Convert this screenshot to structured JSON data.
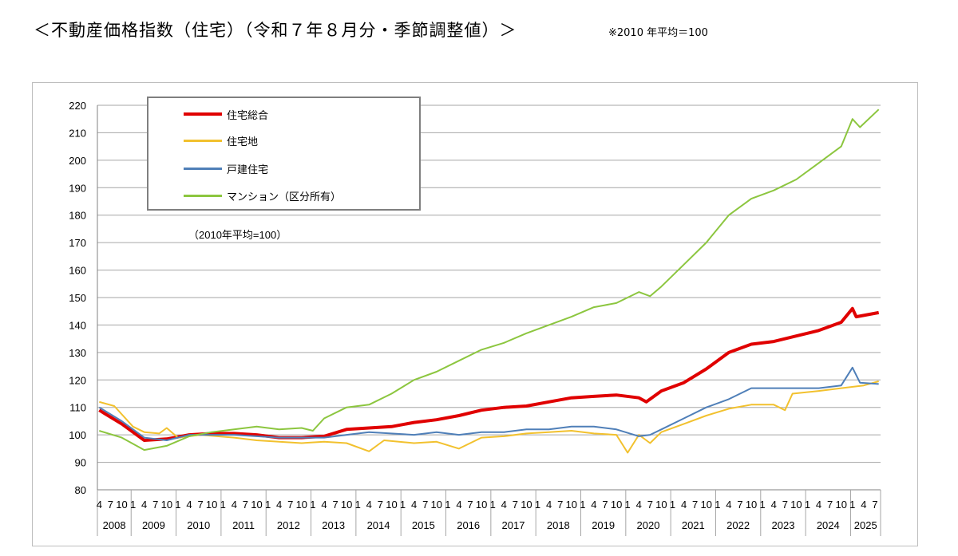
{
  "title": "＜不動産価格指数（住宅）（令和７年８月分・季節調整値）＞",
  "note": "※2010 年平均＝100",
  "chart_data": {
    "type": "line",
    "subtitle": "（2010年平均=100）",
    "ylim": [
      80,
      220
    ],
    "yticks": [
      80,
      90,
      100,
      110,
      120,
      130,
      140,
      150,
      160,
      170,
      180,
      190,
      200,
      210,
      220
    ],
    "grid": true,
    "legend_position": "top-left",
    "x_start": "2008-04",
    "x_end": "2025-08",
    "years": [
      "2008",
      "2009",
      "2010",
      "2011",
      "2012",
      "2013",
      "2014",
      "2015",
      "2016",
      "2017",
      "2018",
      "2019",
      "2020",
      "2021",
      "2022",
      "2023",
      "2024",
      "2025"
    ],
    "month_ticks": [
      "1",
      "4",
      "7",
      "10"
    ],
    "series": [
      {
        "name": "住宅総合",
        "color": "#e00000",
        "width": 4,
        "points": [
          [
            "2008-04",
            109
          ],
          [
            "2008-10",
            104
          ],
          [
            "2009-04",
            98
          ],
          [
            "2009-10",
            98.5
          ],
          [
            "2010-04",
            100
          ],
          [
            "2010-10",
            100.5
          ],
          [
            "2011-04",
            100.5
          ],
          [
            "2011-10",
            100
          ],
          [
            "2012-04",
            99
          ],
          [
            "2012-10",
            99
          ],
          [
            "2013-04",
            99.5
          ],
          [
            "2013-10",
            102
          ],
          [
            "2014-04",
            102.5
          ],
          [
            "2014-10",
            103
          ],
          [
            "2015-04",
            104.5
          ],
          [
            "2015-10",
            105.5
          ],
          [
            "2016-04",
            107
          ],
          [
            "2016-10",
            109
          ],
          [
            "2017-04",
            110
          ],
          [
            "2017-10",
            110.5
          ],
          [
            "2018-04",
            112
          ],
          [
            "2018-10",
            113.5
          ],
          [
            "2019-04",
            114
          ],
          [
            "2019-10",
            114.5
          ],
          [
            "2020-04",
            113.5
          ],
          [
            "2020-06",
            112
          ],
          [
            "2020-10",
            116
          ],
          [
            "2021-04",
            119
          ],
          [
            "2021-10",
            124
          ],
          [
            "2022-04",
            130
          ],
          [
            "2022-10",
            133
          ],
          [
            "2023-04",
            134
          ],
          [
            "2023-10",
            136
          ],
          [
            "2024-04",
            138
          ],
          [
            "2024-10",
            141
          ],
          [
            "2025-01",
            146
          ],
          [
            "2025-02",
            143
          ],
          [
            "2025-08",
            144.5
          ]
        ]
      },
      {
        "name": "住宅地",
        "color": "#f2c12e",
        "width": 2,
        "points": [
          [
            "2008-04",
            112
          ],
          [
            "2008-08",
            110.5
          ],
          [
            "2009-01",
            103
          ],
          [
            "2009-04",
            101
          ],
          [
            "2009-08",
            100.5
          ],
          [
            "2009-10",
            102.5
          ],
          [
            "2010-01",
            99
          ],
          [
            "2010-07",
            100
          ],
          [
            "2011-04",
            99
          ],
          [
            "2011-10",
            98
          ],
          [
            "2012-04",
            97.5
          ],
          [
            "2012-10",
            97
          ],
          [
            "2013-04",
            97.5
          ],
          [
            "2013-10",
            97
          ],
          [
            "2014-04",
            94
          ],
          [
            "2014-08",
            98
          ],
          [
            "2015-04",
            97
          ],
          [
            "2015-10",
            97.5
          ],
          [
            "2016-04",
            95
          ],
          [
            "2016-10",
            99
          ],
          [
            "2017-04",
            99.5
          ],
          [
            "2017-10",
            100.5
          ],
          [
            "2018-04",
            101
          ],
          [
            "2018-10",
            101.5
          ],
          [
            "2019-04",
            100.5
          ],
          [
            "2019-10",
            100
          ],
          [
            "2020-01",
            93.5
          ],
          [
            "2020-04",
            100
          ],
          [
            "2020-07",
            97
          ],
          [
            "2020-10",
            101
          ],
          [
            "2021-04",
            104
          ],
          [
            "2021-10",
            107
          ],
          [
            "2022-04",
            109.5
          ],
          [
            "2022-10",
            111
          ],
          [
            "2023-04",
            111
          ],
          [
            "2023-07",
            109
          ],
          [
            "2023-09",
            115
          ],
          [
            "2024-04",
            116
          ],
          [
            "2024-10",
            117
          ],
          [
            "2025-04",
            118
          ],
          [
            "2025-08",
            119.5
          ]
        ]
      },
      {
        "name": "戸建住宅",
        "color": "#4f7fb8",
        "width": 2,
        "points": [
          [
            "2008-04",
            110
          ],
          [
            "2008-10",
            105
          ],
          [
            "2009-04",
            99
          ],
          [
            "2009-10",
            98
          ],
          [
            "2010-04",
            100
          ],
          [
            "2011-04",
            100
          ],
          [
            "2012-04",
            99
          ],
          [
            "2013-04",
            99
          ],
          [
            "2013-10",
            100
          ],
          [
            "2014-04",
            101
          ],
          [
            "2015-04",
            100
          ],
          [
            "2015-10",
            101
          ],
          [
            "2016-04",
            100
          ],
          [
            "2016-10",
            101
          ],
          [
            "2017-04",
            101
          ],
          [
            "2017-10",
            102
          ],
          [
            "2018-04",
            102
          ],
          [
            "2018-10",
            103
          ],
          [
            "2019-04",
            103
          ],
          [
            "2019-10",
            102
          ],
          [
            "2020-04",
            99.5
          ],
          [
            "2020-07",
            100
          ],
          [
            "2020-10",
            102
          ],
          [
            "2021-04",
            106
          ],
          [
            "2021-10",
            110
          ],
          [
            "2022-04",
            113
          ],
          [
            "2022-10",
            117
          ],
          [
            "2023-04",
            117
          ],
          [
            "2023-10",
            117
          ],
          [
            "2024-04",
            117
          ],
          [
            "2024-10",
            118
          ],
          [
            "2025-01",
            124.5
          ],
          [
            "2025-03",
            119
          ],
          [
            "2025-08",
            118.5
          ]
        ]
      },
      {
        "name": "マンション（区分所有）",
        "color": "#8cc63f",
        "width": 2,
        "points": [
          [
            "2008-04",
            101.5
          ],
          [
            "2008-10",
            99
          ],
          [
            "2009-04",
            94.5
          ],
          [
            "2009-10",
            96
          ],
          [
            "2010-04",
            99.5
          ],
          [
            "2010-10",
            101
          ],
          [
            "2011-04",
            102
          ],
          [
            "2011-10",
            103
          ],
          [
            "2012-04",
            102
          ],
          [
            "2012-10",
            102.5
          ],
          [
            "2013-01",
            101.5
          ],
          [
            "2013-04",
            106
          ],
          [
            "2013-10",
            110
          ],
          [
            "2014-04",
            111
          ],
          [
            "2014-10",
            115
          ],
          [
            "2015-04",
            120
          ],
          [
            "2015-10",
            123
          ],
          [
            "2016-04",
            127
          ],
          [
            "2016-10",
            131
          ],
          [
            "2017-04",
            133.5
          ],
          [
            "2017-10",
            137
          ],
          [
            "2018-04",
            140
          ],
          [
            "2018-10",
            143
          ],
          [
            "2019-04",
            146.5
          ],
          [
            "2019-10",
            148
          ],
          [
            "2020-04",
            152
          ],
          [
            "2020-07",
            150.5
          ],
          [
            "2020-10",
            154
          ],
          [
            "2021-04",
            162
          ],
          [
            "2021-10",
            170
          ],
          [
            "2022-04",
            180
          ],
          [
            "2022-10",
            186
          ],
          [
            "2023-04",
            189
          ],
          [
            "2023-10",
            193
          ],
          [
            "2024-04",
            199
          ],
          [
            "2024-10",
            205
          ],
          [
            "2025-01",
            215
          ],
          [
            "2025-03",
            212
          ],
          [
            "2025-08",
            218.5
          ]
        ]
      }
    ]
  }
}
